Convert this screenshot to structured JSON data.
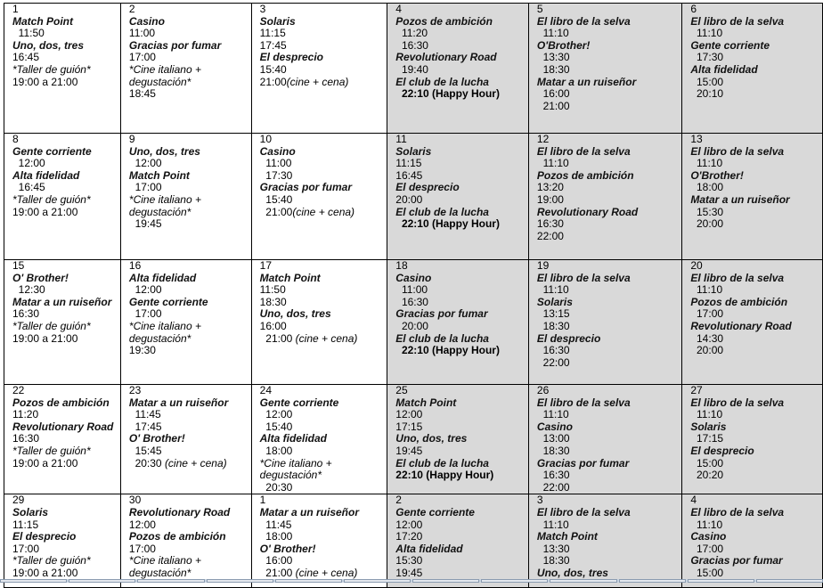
{
  "calendar": {
    "weeks": [
      [
        {
          "day": "1",
          "lines": [
            {
              "t": "Match Point",
              "s": "title"
            },
            {
              "t": "  11:50"
            },
            {
              "t": "Uno, dos, tres",
              "s": "title"
            },
            {
              "t": "16:45"
            },
            {
              "t": "*Taller de guión*",
              "s": "note"
            },
            {
              "t": "19:00 a 21:00"
            }
          ]
        },
        {
          "day": "2",
          "lines": [
            {
              "t": "Casino",
              "s": "title"
            },
            {
              "t": "11:00"
            },
            {
              "t": "Gracias por fumar",
              "s": "title"
            },
            {
              "t": "17:00"
            },
            {
              "t": "*Cine italiano +",
              "s": "note"
            },
            {
              "t": "degustación*",
              "s": "note"
            },
            {
              "t": "18:45"
            }
          ]
        },
        {
          "day": "3",
          "lines": [
            {
              "t": "Solaris",
              "s": "title"
            },
            {
              "t": "11:15"
            },
            {
              "t": "17:45"
            },
            {
              "t": "El desprecio",
              "s": "title"
            },
            {
              "t": "15:40"
            },
            {
              "t": "21:00",
              "em": "(cine + cena)"
            }
          ]
        },
        {
          "day": "4",
          "lines": [
            {
              "t": "Pozos de ambición",
              "s": "title"
            },
            {
              "t": "  11:20"
            },
            {
              "t": "  16:30"
            },
            {
              "t": "Revolutionary Road",
              "s": "title"
            },
            {
              "t": "  19:40"
            },
            {
              "t": "El club de la lucha",
              "s": "title"
            },
            {
              "t": "  22:10 (Happy Hour)",
              "s": "bold"
            }
          ]
        },
        {
          "day": "5",
          "lines": [
            {
              "t": "El libro de la selva",
              "s": "title"
            },
            {
              "t": "  11:10"
            },
            {
              "t": "O'Brother!",
              "s": "title"
            },
            {
              "t": "  13:30"
            },
            {
              "t": "  18:30"
            },
            {
              "t": "Matar a un ruiseñor",
              "s": "title"
            },
            {
              "t": "  16:00"
            },
            {
              "t": "  21:00"
            }
          ]
        },
        {
          "day": "6",
          "lines": [
            {
              "t": "El libro de la selva",
              "s": "title"
            },
            {
              "t": "  11:10"
            },
            {
              "t": "Gente corriente",
              "s": "title"
            },
            {
              "t": "  17:30"
            },
            {
              "t": "Alta fidelidad",
              "s": "title"
            },
            {
              "t": "  15:00"
            },
            {
              "t": "  20:10"
            }
          ]
        }
      ],
      [
        {
          "day": "8",
          "lines": [
            {
              "t": "Gente corriente",
              "s": "title"
            },
            {
              "t": "  12:00"
            },
            {
              "t": "Alta fidelidad",
              "s": "title"
            },
            {
              "t": "  16:45"
            },
            {
              "t": "*Taller de guión*",
              "s": "note"
            },
            {
              "t": "19:00 a 21:00"
            }
          ]
        },
        {
          "day": "9",
          "lines": [
            {
              "t": "Uno, dos, tres",
              "s": "title"
            },
            {
              "t": "  12:00"
            },
            {
              "t": "Match Point",
              "s": "title"
            },
            {
              "t": "  17:00"
            },
            {
              "t": "*Cine italiano +",
              "s": "note"
            },
            {
              "t": "degustación*",
              "s": "note"
            },
            {
              "t": "  19:45"
            }
          ]
        },
        {
          "day": "10",
          "lines": [
            {
              "t": "Casino",
              "s": "title"
            },
            {
              "t": "  11:00"
            },
            {
              "t": "  17:30"
            },
            {
              "t": "Gracias por fumar",
              "s": "title"
            },
            {
              "t": "  15:40"
            },
            {
              "t": "  21:00",
              "em": "(cine + cena)"
            }
          ]
        },
        {
          "day": "11",
          "lines": [
            {
              "t": "Solaris",
              "s": "title"
            },
            {
              "t": "11:15"
            },
            {
              "t": "16:45"
            },
            {
              "t": "El desprecio",
              "s": "title"
            },
            {
              "t": "20:00"
            },
            {
              "t": "El club de la lucha",
              "s": "title"
            },
            {
              "t": "  22:10 (Happy Hour)",
              "s": "bold"
            }
          ]
        },
        {
          "day": "12",
          "lines": [
            {
              "t": "El libro de la selva",
              "s": "title"
            },
            {
              "t": "  11:10"
            },
            {
              "t": "Pozos de ambición",
              "s": "title"
            },
            {
              "t": "13:20"
            },
            {
              "t": "19:00"
            },
            {
              "t": "Revolutionary Road",
              "s": "title"
            },
            {
              "t": "16:30"
            },
            {
              "t": "22:00"
            }
          ]
        },
        {
          "day": "13",
          "lines": [
            {
              "t": "El libro de la selva",
              "s": "title"
            },
            {
              "t": "  11:10"
            },
            {
              "t": "O'Brother!",
              "s": "title"
            },
            {
              "t": "  18:00"
            },
            {
              "t": "Matar a un ruiseñor",
              "s": "title"
            },
            {
              "t": "  15:30"
            },
            {
              "t": "  20:00"
            }
          ]
        }
      ],
      [
        {
          "day": "15",
          "lines": [
            {
              "t": "O' Brother!",
              "s": "title"
            },
            {
              "t": "  12:30"
            },
            {
              "t": "Matar a un ruiseñor",
              "s": "title"
            },
            {
              "t": "16:30"
            },
            {
              "t": "*Taller de guión*",
              "s": "note"
            },
            {
              "t": "19:00 a 21:00"
            }
          ]
        },
        {
          "day": "16",
          "lines": [
            {
              "t": "Alta fidelidad",
              "s": "title"
            },
            {
              "t": "  12:00"
            },
            {
              "t": "Gente corriente",
              "s": "title"
            },
            {
              "t": "  17:00"
            },
            {
              "t": "*Cine italiano +",
              "s": "note"
            },
            {
              "t": "degustación*",
              "s": "note"
            },
            {
              "t": "19:30"
            }
          ]
        },
        {
          "day": "17",
          "lines": [
            {
              "t": "Match Point",
              "s": "title"
            },
            {
              "t": "11:50"
            },
            {
              "t": "18:30"
            },
            {
              "t": "Uno, dos, tres",
              "s": "title"
            },
            {
              "t": "16:00"
            },
            {
              "t": "  21:00 ",
              "em": "(cine + cena)"
            }
          ]
        },
        {
          "day": "18",
          "lines": [
            {
              "t": "Casino",
              "s": "title"
            },
            {
              "t": "  11:00"
            },
            {
              "t": "  16:30"
            },
            {
              "t": "Gracias por fumar",
              "s": "title"
            },
            {
              "t": "  20:00"
            },
            {
              "t": "El club de la lucha",
              "s": "title"
            },
            {
              "t": "  22:10 (Happy Hour)",
              "s": "bold"
            }
          ]
        },
        {
          "day": "19",
          "lines": [
            {
              "t": "El libro de la selva",
              "s": "title"
            },
            {
              "t": "  11:10"
            },
            {
              "t": "Solaris",
              "s": "title"
            },
            {
              "t": "  13:15"
            },
            {
              "t": "  18:30"
            },
            {
              "t": "El desprecio",
              "s": "title"
            },
            {
              "t": "  16:30"
            },
            {
              "t": "  22:00"
            }
          ]
        },
        {
          "day": "20",
          "lines": [
            {
              "t": "El libro de la selva",
              "s": "title"
            },
            {
              "t": "  11:10"
            },
            {
              "t": "Pozos de ambición",
              "s": "title"
            },
            {
              "t": "  17:00"
            },
            {
              "t": "Revolutionary Road",
              "s": "title"
            },
            {
              "t": "  14:30"
            },
            {
              "t": "  20:00"
            }
          ]
        }
      ],
      [
        {
          "day": "22",
          "lines": [
            {
              "t": "Pozos de ambición",
              "s": "title"
            },
            {
              "t": "11:20"
            },
            {
              "t": "Revolutionary Road",
              "s": "title"
            },
            {
              "t": "16:30"
            },
            {
              "t": "*Taller de guión*",
              "s": "note"
            },
            {
              "t": "19:00 a 21:00"
            }
          ]
        },
        {
          "day": "23",
          "lines": [
            {
              "t": "Matar a un ruiseñor",
              "s": "title"
            },
            {
              "t": "  11:45"
            },
            {
              "t": "  17:45"
            },
            {
              "t": "O' Brother!",
              "s": "title"
            },
            {
              "t": "  15:45"
            },
            {
              "t": "  20:30 ",
              "em": "(cine + cena)"
            }
          ]
        },
        {
          "day": "24",
          "lines": [
            {
              "t": "Gente corriente",
              "s": "title"
            },
            {
              "t": "  12:00"
            },
            {
              "t": "  15:40"
            },
            {
              "t": "Alta fidelidad",
              "s": "title"
            },
            {
              "t": "  18:00"
            },
            {
              "t": "*Cine italiano +",
              "s": "note"
            },
            {
              "t": "degustación*",
              "s": "note"
            },
            {
              "t": "  20:30"
            }
          ]
        },
        {
          "day": "25",
          "lines": [
            {
              "t": "Match Point",
              "s": "title"
            },
            {
              "t": "12:00"
            },
            {
              "t": "17:15"
            },
            {
              "t": "Uno, dos, tres",
              "s": "title"
            },
            {
              "t": "19:45"
            },
            {
              "t": "El club de la lucha",
              "s": "title"
            },
            {
              "t": "22:10 (Happy Hour)",
              "s": "bold"
            }
          ]
        },
        {
          "day": "26",
          "lines": [
            {
              "t": "El libro de la selva",
              "s": "title"
            },
            {
              "t": "  11:10"
            },
            {
              "t": "Casino",
              "s": "title"
            },
            {
              "t": "  13:00"
            },
            {
              "t": "  18:30"
            },
            {
              "t": "Gracias por fumar",
              "s": "title"
            },
            {
              "t": "  16:30"
            },
            {
              "t": "  22:00"
            }
          ]
        },
        {
          "day": "27",
          "lines": [
            {
              "t": "El libro de la selva",
              "s": "title"
            },
            {
              "t": "  11:10"
            },
            {
              "t": "Solaris",
              "s": "title"
            },
            {
              "t": "  17:15"
            },
            {
              "t": "El desprecio",
              "s": "title"
            },
            {
              "t": "  15:00"
            },
            {
              "t": "  20:20"
            }
          ]
        }
      ],
      [
        {
          "day": "29",
          "lines": [
            {
              "t": "Solaris",
              "s": "title"
            },
            {
              "t": "11:15"
            },
            {
              "t": "El desprecio",
              "s": "title"
            },
            {
              "t": "17:00"
            },
            {
              "t": "*Taller de guión*",
              "s": "note"
            },
            {
              "t": "19:00 a 21:00"
            }
          ]
        },
        {
          "day": "30",
          "lines": [
            {
              "t": "Revolutionary Road",
              "s": "title"
            },
            {
              "t": "12:00"
            },
            {
              "t": "Pozos de ambición",
              "s": "title"
            },
            {
              "t": "17:00"
            },
            {
              "t": "*Cine italiano +",
              "s": "note"
            },
            {
              "t": "degustación*",
              "s": "note"
            }
          ]
        },
        {
          "day": "1",
          "lines": [
            {
              "t": "Matar a un ruiseñor",
              "s": "title"
            },
            {
              "t": "  11:45"
            },
            {
              "t": "  18:00"
            },
            {
              "t": "O' Brother!",
              "s": "title"
            },
            {
              "t": "  16:00"
            },
            {
              "t": "  21:00 ",
              "em": "(cine + cena)"
            }
          ]
        },
        {
          "day": "2",
          "lines": [
            {
              "t": "Gente corriente",
              "s": "title"
            },
            {
              "t": "12:00"
            },
            {
              "t": "17:20"
            },
            {
              "t": "Alta fidelidad",
              "s": "title"
            },
            {
              "t": "15:30"
            },
            {
              "t": "19:45"
            }
          ]
        },
        {
          "day": "3",
          "lines": [
            {
              "t": "El libro de la selva",
              "s": "title"
            },
            {
              "t": "  11:10"
            },
            {
              "t": "Match Point",
              "s": "title"
            },
            {
              "t": "  13:30"
            },
            {
              "t": "  18:30"
            },
            {
              "t": "Uno, dos, tres",
              "s": "title"
            }
          ]
        },
        {
          "day": "4",
          "lines": [
            {
              "t": "El libro de la selva",
              "s": "title"
            },
            {
              "t": "  11:10"
            },
            {
              "t": "Casino",
              "s": "title"
            },
            {
              "t": "  17:00"
            },
            {
              "t": "Gracias por fumar",
              "s": "title"
            },
            {
              "t": "  15:00"
            }
          ]
        }
      ]
    ],
    "weekend_color": "#d9d9d9"
  }
}
